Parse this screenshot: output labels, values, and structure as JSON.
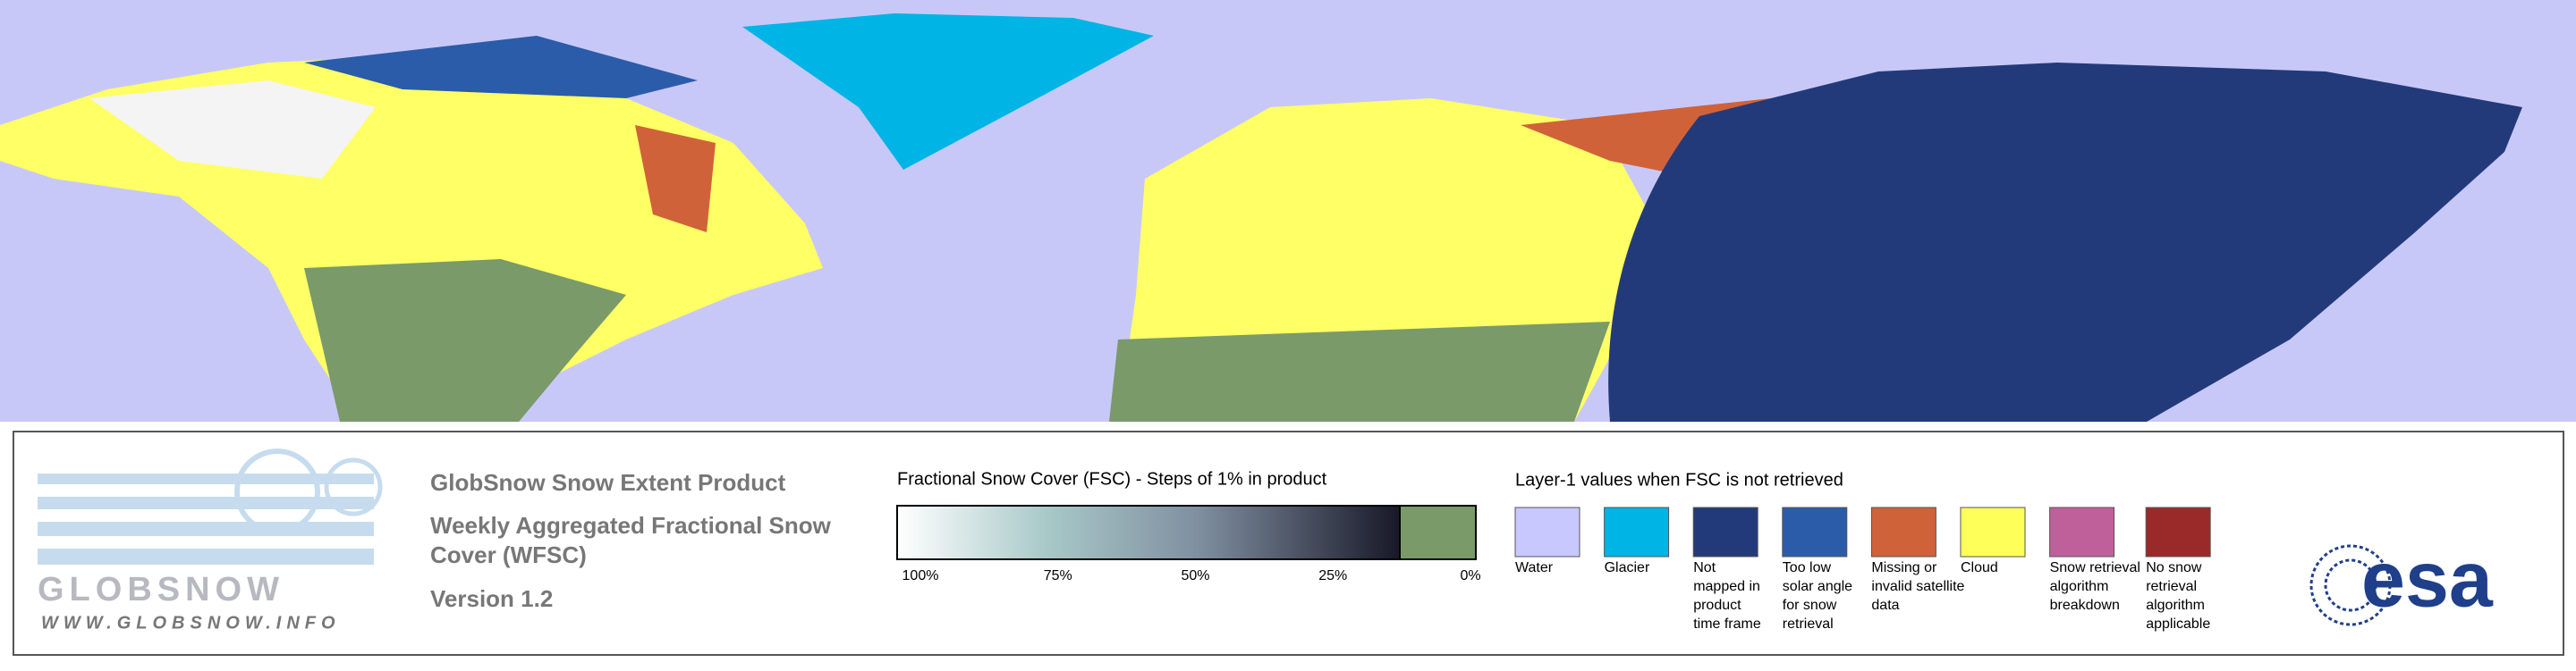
{
  "logo": {
    "name": "GLOBSNOW",
    "url": "WWW.GLOBSNOW.INFO"
  },
  "header": {
    "title": "GlobSnow Snow Extent Product",
    "subtitle_lines": [
      "Weekly Aggregated Fractional Snow",
      "Cover (WFSC)"
    ],
    "version": "Version 1.2"
  },
  "fsc_legend": {
    "title": "Fractional Snow Cover (FSC) - Steps of 1% in product",
    "ticks": [
      "100%",
      "75%",
      "50%",
      "25%",
      "0%"
    ]
  },
  "layer1_legend": {
    "title": "Layer-1 values when FSC is not retrieved",
    "items": [
      {
        "label": [
          "Water"
        ],
        "color": "#c8c8ff"
      },
      {
        "label": [
          "Glacier"
        ],
        "color": "#00b4e6"
      },
      {
        "label": [
          "Not",
          "mapped in",
          "product",
          "time frame"
        ],
        "color": "#233a7a"
      },
      {
        "label": [
          "Too low",
          "solar angle",
          "for snow",
          "retrieval"
        ],
        "color": "#2a5caa"
      },
      {
        "label": [
          "Missing or",
          "invalid satellite",
          "data"
        ],
        "color": "#d0623a"
      },
      {
        "label": [
          "Cloud"
        ],
        "color": "#ffff5a"
      },
      {
        "label": [
          "Snow retrieval",
          "algorithm",
          "breakdown"
        ],
        "color": "#c0609a"
      },
      {
        "label": [
          "No snow",
          "retrieval",
          "algorithm",
          "applicable"
        ],
        "color": "#9a2a2a"
      }
    ]
  },
  "agency_logo": "esa"
}
